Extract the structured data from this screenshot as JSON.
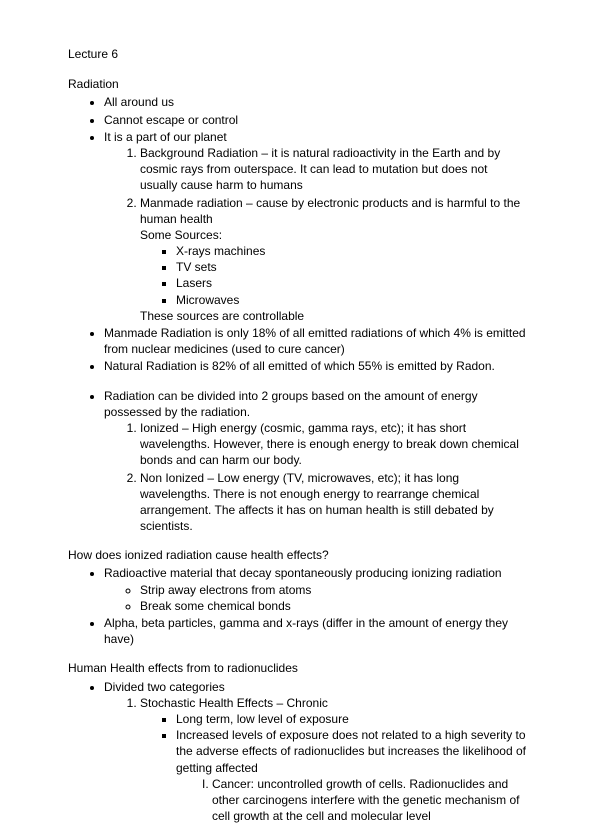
{
  "title": "Lecture 6",
  "s1": {
    "heading": "Radiation",
    "b1": "All around us",
    "b2": "Cannot escape or control",
    "b3": "It is a part of our planet",
    "n1": "Background Radiation – it is natural radioactivity in the Earth and by cosmic rays from outerspace. It can lead to mutation but does not usually cause harm to humans",
    "n2": "Manmade radiation – cause by electronic products and is harmful to the human health",
    "sources_label": "Some Sources:",
    "src1": "X-rays machines",
    "src2": "TV sets",
    "src3": "Lasers",
    "src4": "Microwaves",
    "sources_note": "These sources are controllable",
    "b4": "Manmade Radiation is only 18% of all emitted radiations of which 4% is emitted from nuclear medicines (used to cure cancer)",
    "b5": "Natural Radiation is 82% of all emitted of which 55% is emitted by Radon.",
    "b6": "Radiation can be divided into 2 groups based on the amount of energy possessed by the radiation.",
    "g1": "Ionized – High energy (cosmic, gamma rays, etc); it has short wavelengths. However, there is enough energy to break down chemical bonds and can harm our body.",
    "g2": "Non Ionized – Low energy (TV, microwaves, etc); it has long wavelengths. There is not enough energy to rearrange chemical arrangement. The affects it has on human health is still debated by scientists."
  },
  "s2": {
    "heading": "How does ionized radiation cause health effects?",
    "b1": "Radioactive material that decay spontaneously producing ionizing radiation",
    "c1": "Strip away electrons from atoms",
    "c2": "Break some chemical bonds",
    "b2": "Alpha, beta particles, gamma and x-rays (differ in the amount of energy they have)"
  },
  "s3": {
    "heading": "Human Health effects from to radionuclides",
    "b1": "Divided two categories",
    "n1": "Stochastic Health Effects – Chronic",
    "sq1": "Long term, low level of exposure",
    "sq2": "Increased levels of exposure does not related to a high severity to the adverse effects of radionuclides but increases the likelihood of getting affected",
    "r1": "Cancer: uncontrolled growth of cells. Radionuclides and other carcinogens interfere with the genetic mechanism of cell growth at the cell and molecular level"
  }
}
